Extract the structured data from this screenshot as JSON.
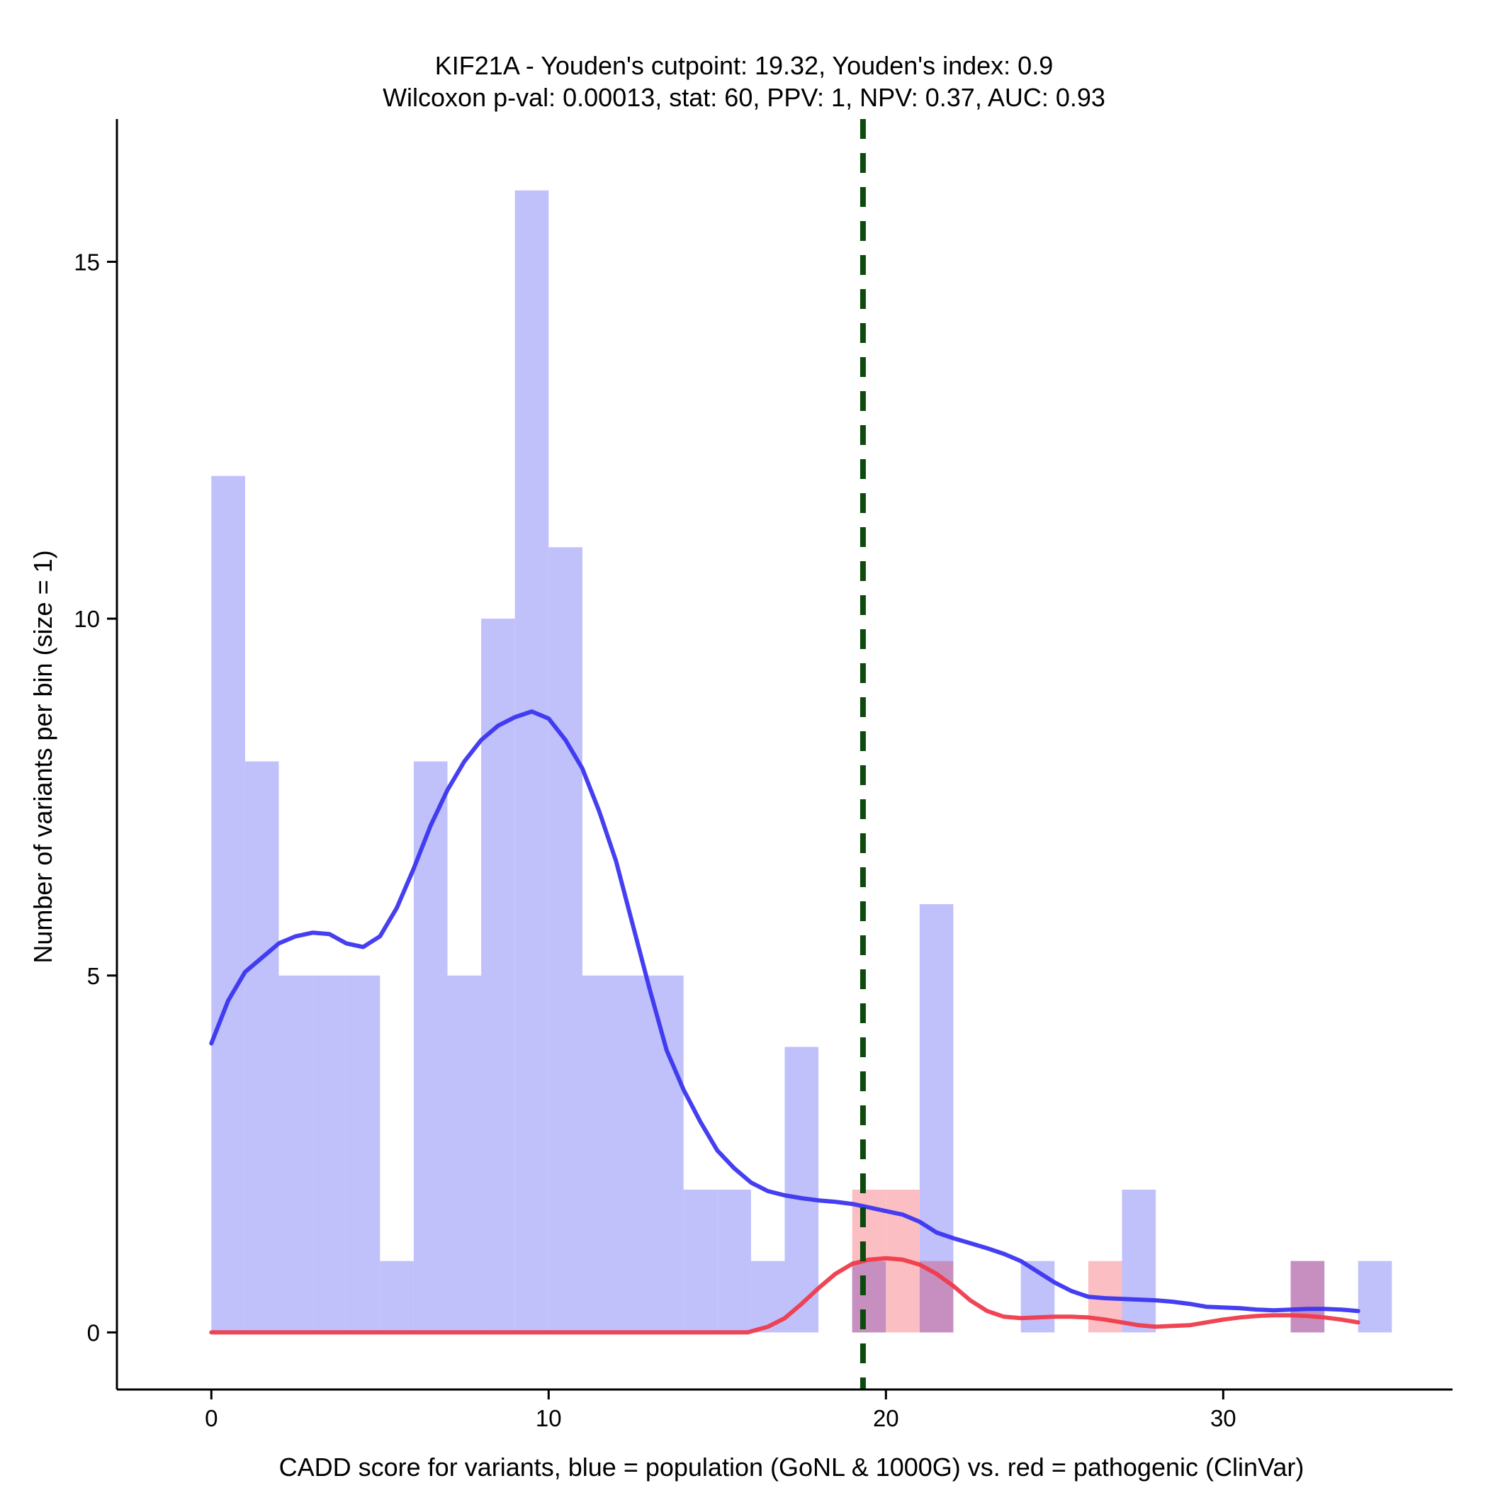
{
  "chart_data": {
    "type": "bar",
    "title_line1": "KIF21A - Youden's cutpoint: 19.32, Youden's index: 0.9",
    "title_line2": "Wilcoxon p-val: 0.00013, stat: 60, PPV: 1, NPV: 0.37, AUC: 0.93",
    "xlabel": "CADD score for variants, blue = population (GoNL & 1000G) vs. red = pathogenic (ClinVar)",
    "ylabel": "Number of variants per bin (size = 1)",
    "xlim": [
      -2.8,
      36.8
    ],
    "ylim": [
      -0.8,
      17.0
    ],
    "xticks": [
      0,
      10,
      20,
      30
    ],
    "yticks": [
      0,
      5,
      10,
      15
    ],
    "bin_width": 1,
    "cutpoint": 19.32,
    "colors": {
      "population_bar": "#c0c0fb",
      "pathogenic_bar": "#fbbfc3",
      "overlap_bar": "#c78fc0",
      "population_line": "#3b35f0",
      "pathogenic_line": "#ef3b4b",
      "cutpoint_line": "#0d4a0d"
    },
    "series": [
      {
        "name": "population (GoNL & 1000G)",
        "bins": [
          {
            "start": 0,
            "count": 12
          },
          {
            "start": 1,
            "count": 8
          },
          {
            "start": 2,
            "count": 5
          },
          {
            "start": 3,
            "count": 5
          },
          {
            "start": 4,
            "count": 5
          },
          {
            "start": 5,
            "count": 1
          },
          {
            "start": 6,
            "count": 8
          },
          {
            "start": 7,
            "count": 5
          },
          {
            "start": 8,
            "count": 10
          },
          {
            "start": 9,
            "count": 16
          },
          {
            "start": 10,
            "count": 11
          },
          {
            "start": 11,
            "count": 5
          },
          {
            "start": 12,
            "count": 5
          },
          {
            "start": 13,
            "count": 5
          },
          {
            "start": 14,
            "count": 2
          },
          {
            "start": 15,
            "count": 2
          },
          {
            "start": 16,
            "count": 1
          },
          {
            "start": 17,
            "count": 4
          },
          {
            "start": 19,
            "count": 1
          },
          {
            "start": 21,
            "count": 6
          },
          {
            "start": 24,
            "count": 1
          },
          {
            "start": 27,
            "count": 2
          },
          {
            "start": 32,
            "count": 1
          },
          {
            "start": 34,
            "count": 1
          }
        ],
        "density_curve": [
          [
            0,
            4.05
          ],
          [
            0.5,
            4.65
          ],
          [
            1,
            5.05
          ],
          [
            1.5,
            5.25
          ],
          [
            2,
            5.45
          ],
          [
            2.5,
            5.55
          ],
          [
            3,
            5.6
          ],
          [
            3.5,
            5.58
          ],
          [
            4,
            5.45
          ],
          [
            4.5,
            5.4
          ],
          [
            5,
            5.55
          ],
          [
            5.5,
            5.95
          ],
          [
            6,
            6.5
          ],
          [
            6.5,
            7.1
          ],
          [
            7,
            7.6
          ],
          [
            7.5,
            8.0
          ],
          [
            8,
            8.3
          ],
          [
            8.5,
            8.5
          ],
          [
            9,
            8.62
          ],
          [
            9.5,
            8.7
          ],
          [
            10,
            8.6
          ],
          [
            10.5,
            8.3
          ],
          [
            11,
            7.9
          ],
          [
            11.5,
            7.3
          ],
          [
            12,
            6.6
          ],
          [
            12.5,
            5.7
          ],
          [
            13,
            4.8
          ],
          [
            13.5,
            3.95
          ],
          [
            14,
            3.4
          ],
          [
            14.5,
            2.95
          ],
          [
            15,
            2.55
          ],
          [
            15.5,
            2.3
          ],
          [
            16,
            2.1
          ],
          [
            16.5,
            1.98
          ],
          [
            17,
            1.92
          ],
          [
            17.5,
            1.88
          ],
          [
            18,
            1.85
          ],
          [
            18.5,
            1.83
          ],
          [
            19,
            1.8
          ],
          [
            19.5,
            1.75
          ],
          [
            20,
            1.7
          ],
          [
            20.5,
            1.65
          ],
          [
            21,
            1.55
          ],
          [
            21.5,
            1.4
          ],
          [
            22,
            1.32
          ],
          [
            22.5,
            1.25
          ],
          [
            23,
            1.18
          ],
          [
            23.5,
            1.1
          ],
          [
            24,
            1.0
          ],
          [
            24.5,
            0.85
          ],
          [
            25,
            0.7
          ],
          [
            25.5,
            0.58
          ],
          [
            26,
            0.5
          ],
          [
            26.5,
            0.48
          ],
          [
            27,
            0.47
          ],
          [
            27.5,
            0.46
          ],
          [
            28,
            0.45
          ],
          [
            28.5,
            0.43
          ],
          [
            29,
            0.4
          ],
          [
            29.5,
            0.36
          ],
          [
            30,
            0.35
          ],
          [
            30.5,
            0.34
          ],
          [
            31,
            0.32
          ],
          [
            31.5,
            0.31
          ],
          [
            32,
            0.32
          ],
          [
            32.5,
            0.33
          ],
          [
            33,
            0.33
          ],
          [
            33.5,
            0.32
          ],
          [
            34,
            0.3
          ]
        ]
      },
      {
        "name": "pathogenic (ClinVar)",
        "bins": [
          {
            "start": 19,
            "count": 2
          },
          {
            "start": 20,
            "count": 2
          },
          {
            "start": 21,
            "count": 1
          },
          {
            "start": 26,
            "count": 1
          },
          {
            "start": 32,
            "count": 1
          }
        ],
        "density_curve": [
          [
            0,
            0.0
          ],
          [
            15.5,
            0.0
          ],
          [
            15.9,
            0.0
          ],
          [
            16.5,
            0.08
          ],
          [
            17,
            0.2
          ],
          [
            17.5,
            0.4
          ],
          [
            18,
            0.62
          ],
          [
            18.5,
            0.82
          ],
          [
            19,
            0.96
          ],
          [
            19.5,
            1.02
          ],
          [
            20,
            1.04
          ],
          [
            20.5,
            1.02
          ],
          [
            21,
            0.95
          ],
          [
            21.5,
            0.82
          ],
          [
            22,
            0.65
          ],
          [
            22.5,
            0.45
          ],
          [
            23,
            0.3
          ],
          [
            23.5,
            0.22
          ],
          [
            24,
            0.2
          ],
          [
            24.5,
            0.21
          ],
          [
            25,
            0.22
          ],
          [
            25.5,
            0.22
          ],
          [
            26,
            0.21
          ],
          [
            26.5,
            0.18
          ],
          [
            27,
            0.14
          ],
          [
            27.5,
            0.1
          ],
          [
            28,
            0.08
          ],
          [
            28.5,
            0.09
          ],
          [
            29,
            0.1
          ],
          [
            29.5,
            0.14
          ],
          [
            30,
            0.18
          ],
          [
            30.5,
            0.21
          ],
          [
            31,
            0.23
          ],
          [
            31.5,
            0.24
          ],
          [
            32,
            0.24
          ],
          [
            32.5,
            0.23
          ],
          [
            33,
            0.21
          ],
          [
            33.5,
            0.18
          ],
          [
            34,
            0.14
          ]
        ]
      }
    ]
  }
}
